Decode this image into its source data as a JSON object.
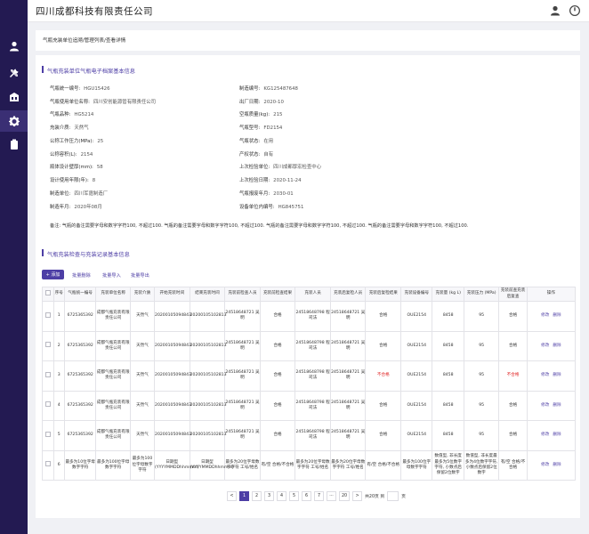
{
  "app": {
    "title": "四川成都科技有限责任公司"
  },
  "breadcrumb": "气瓶充装单位追溯/管理列表/查看详情",
  "basic": {
    "section_title": "气瓶充装单位气瓶电子档案基本信息",
    "left": [
      {
        "label": "气瓶统一编号:",
        "value": "HGU15426"
      },
      {
        "label": "气瓶使用单位名称:",
        "value": "四川安创能源管有限责任公司"
      },
      {
        "label": "气瓶品种:",
        "value": "HG5214"
      },
      {
        "label": "充装介质:",
        "value": "天然气"
      },
      {
        "label": "公称工作压力(MPa):",
        "value": "25"
      },
      {
        "label": "公称容积(L):",
        "value": "2154"
      },
      {
        "label": "瓶体设计壁厚(mm):",
        "value": "58"
      },
      {
        "label": "设计使用年限(年):",
        "value": "8"
      },
      {
        "label": "制造单位:",
        "value": "四川军霆制造厂"
      },
      {
        "label": "制造年月:",
        "value": "2020年08月"
      }
    ],
    "right": [
      {
        "label": "制造编号:",
        "value": "KG125487648"
      },
      {
        "label": "出厂日期:",
        "value": "2020-10"
      },
      {
        "label": "空瓶质量(kg):",
        "value": "215"
      },
      {
        "label": "气瓶型号:",
        "value": "FD2154"
      },
      {
        "label": "气瓶状态:",
        "value": "在用"
      },
      {
        "label": "产权状态:",
        "value": "自有"
      },
      {
        "label": "上次检验单位:",
        "value": "四川成都厚宏检查中心"
      },
      {
        "label": "上次检验日期:",
        "value": "2020-11-24"
      },
      {
        "label": "气瓶报废年月:",
        "value": "2030-01"
      },
      {
        "label": "设备单位内编号:",
        "value": "HG845751"
      }
    ],
    "remark_label": "备注:",
    "remark_value": "气瓶的备注需要字母和数字字符100, 不超过100. 气瓶的备注需要字母和数字字符100, 不超过100. 气瓶的备注需要字母和数字字符100, 不超过100. 气瓶的备注需要字母和数字字符100, 不超过100."
  },
  "records": {
    "section_title": "气瓶充装检查与充装记录基本信息",
    "add_label": "+ 添加",
    "actions": [
      "批量删除",
      "批量导入",
      "批量导出"
    ],
    "headers": [
      "序号",
      "气瓶统一编号",
      "充装单位名称",
      "充装介质",
      "开始充装时间",
      "结束充装时间",
      "充装前检查人员",
      "充装前检查结果",
      "充装人员",
      "充装后复检人员",
      "充装后复检结果",
      "充装设备编号",
      "充装量 (kg L)",
      "充装压力 (MPa)",
      "充装前查充装后复查",
      "操作"
    ],
    "rows": [
      [
        "1",
        "6725365392",
        "成都气瓶充装有限责任公司",
        "天然气",
        "20200105094843",
        "20200105102813",
        "24518648721 吴明",
        "合格",
        "24518648798 程司法",
        "24518648721 吴明",
        "合格",
        "OUE2154",
        "8458",
        "95",
        "合格"
      ],
      [
        "2",
        "6725365392",
        "成都气瓶充装有限责任公司",
        "天然气",
        "20200105094843",
        "20200105102813",
        "24518648721 吴明",
        "合格",
        "24518648798 程司法",
        "24518648721 吴明",
        "合格",
        "OUE2154",
        "8458",
        "95",
        "合格"
      ],
      [
        "3",
        "6725365392",
        "成都气瓶充装有限责任公司",
        "天然气",
        "20200105094843",
        "20200105102813",
        "24518648721 吴明",
        "合格",
        "24518648798 程司法",
        "24518648721 吴明",
        "不合格",
        "OUE2154",
        "8458",
        "95",
        "不合格"
      ],
      [
        "4",
        "6725365392",
        "成都气瓶充装有限责任公司",
        "天然气",
        "20200105094843",
        "20200105102813",
        "24518648721 吴明",
        "合格",
        "24518648798 程司法",
        "24518648721 吴明",
        "合格",
        "OUE2154",
        "8458",
        "95",
        "合格"
      ],
      [
        "5",
        "6725365392",
        "成都气瓶充装有限责任公司",
        "天然气",
        "20200105094843",
        "20200105102813",
        "24518648721 吴明",
        "合格",
        "24518648798 程司法",
        "24518648721 吴明",
        "合格",
        "OUE2154",
        "8458",
        "95",
        "合格"
      ],
      [
        "6",
        "最多为10位字母数字字符",
        "最多为100位字母数字字符",
        "最多为100位字母数字字符",
        "日期型 (YYYYMMDDhhmmss)",
        "日期型 (YYYYMMDDhhmmss)",
        "最多为20位字母数字字符 工号/姓名",
        "有/空 合格/不合格",
        "最多为20位字母数字字符 工号/姓名",
        "最多为20位字母数字字符 工号/姓名",
        "有/空 合格/不合格",
        "最多为100位字母数字字符",
        "数值型, 非长度最多为5位数字字符, 小数点后保留2位数字",
        "数值型, 非长度最多为4位数字字符, 小数点后保留2位数字",
        "有/空 合格/不合格"
      ]
    ],
    "edit_label": "修改",
    "delete_label": "删除"
  },
  "pagination": {
    "pages": [
      "1",
      "2",
      "3",
      "4",
      "5",
      "6",
      "7"
    ],
    "current": "1",
    "prev": "<",
    "ellipsis": "···",
    "last": "20",
    "next": ">",
    "goto_prefix": "共20页 到",
    "goto_suffix": "页"
  },
  "colors": {
    "sidebar": "#231a52",
    "accent": "#4d3ea5",
    "danger": "#e02020"
  }
}
